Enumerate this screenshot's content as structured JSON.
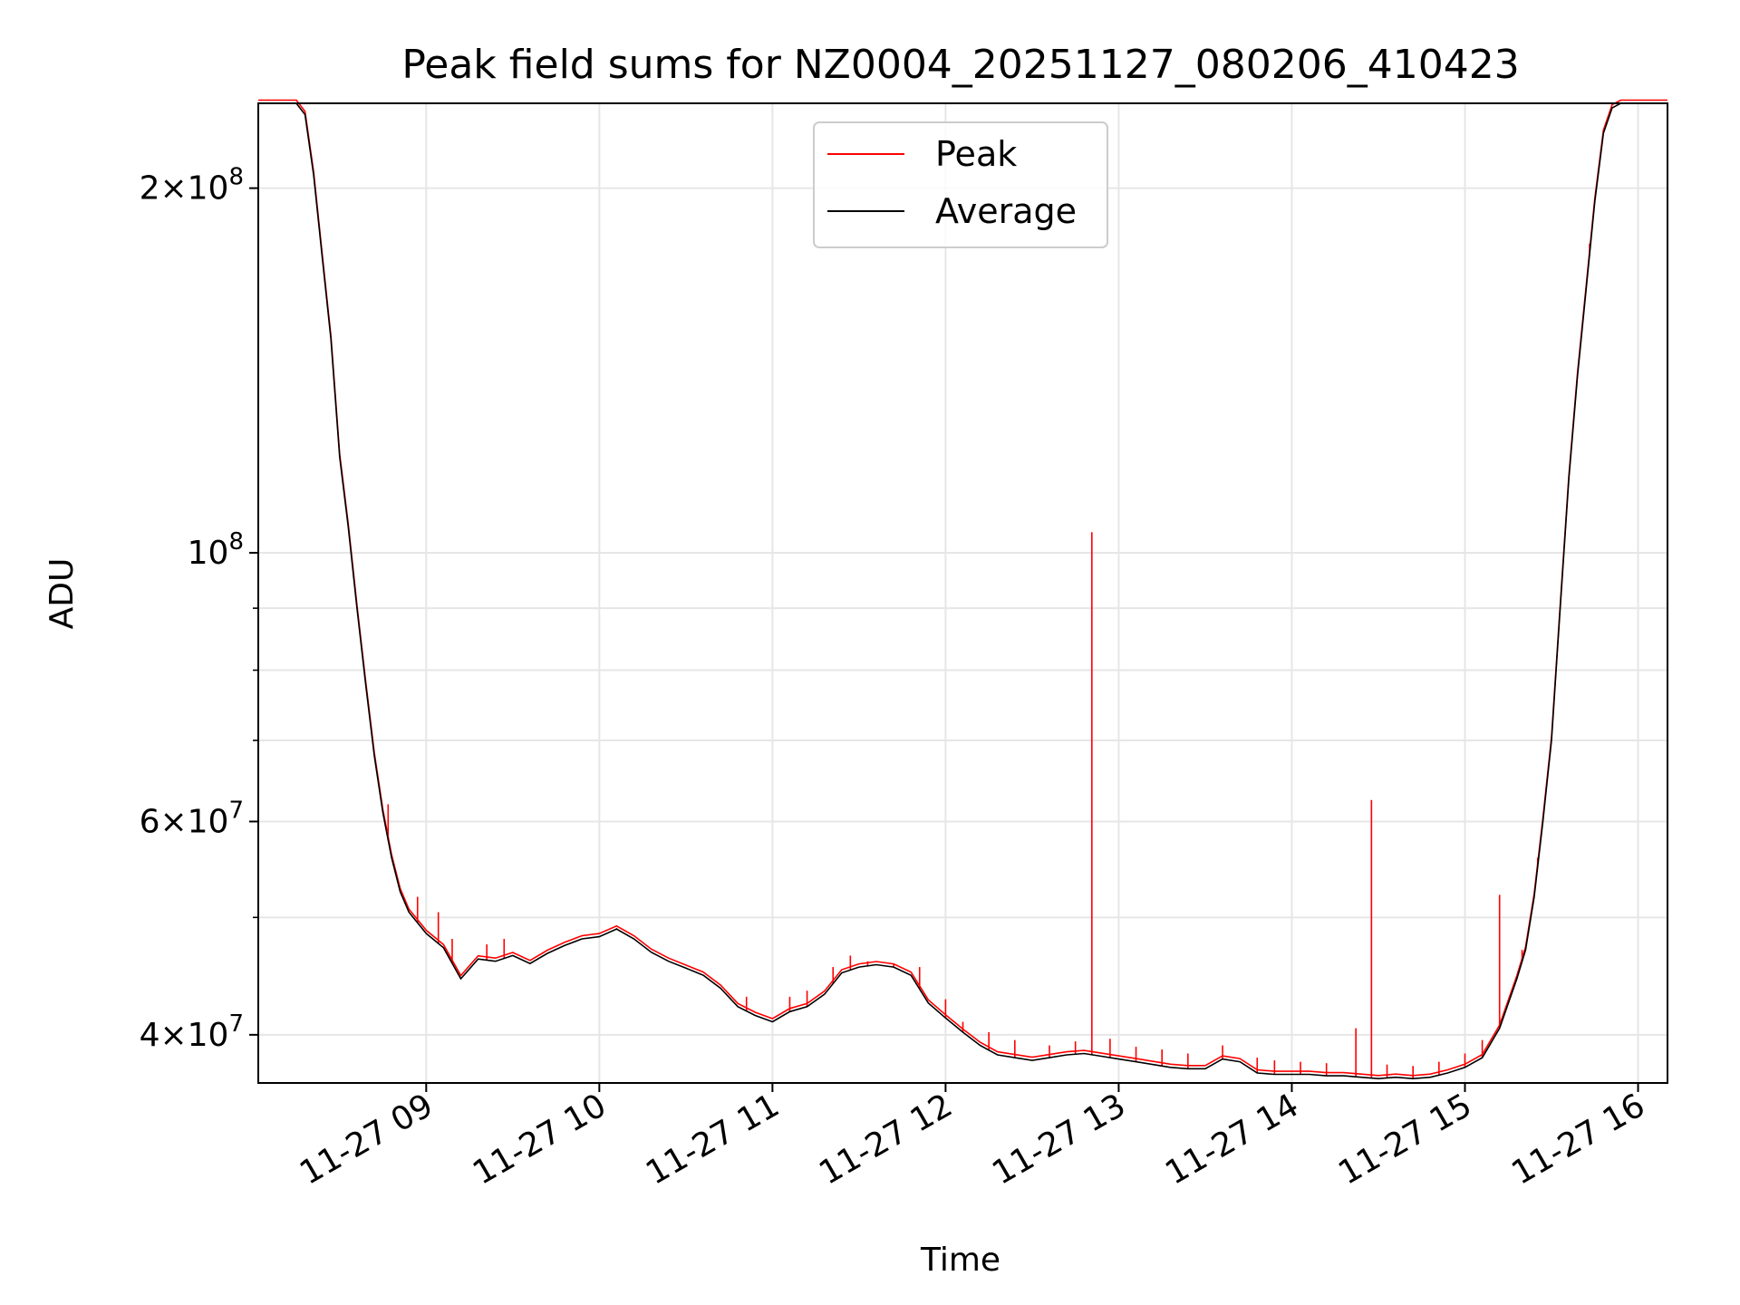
{
  "chart_data": {
    "type": "line",
    "title": "Peak field sums for NZ0004_20251127_080206_410423",
    "xlabel": "Time",
    "ylabel": "ADU",
    "y_scale": "log",
    "ylim": [
      36500000,
      235000000
    ],
    "x_hours_range": [
      8.03,
      16.17
    ],
    "grid": true,
    "legend_position": "upper center",
    "x_ticks": [
      {
        "value": 9,
        "label": "11-27 09"
      },
      {
        "value": 10,
        "label": "11-27 10"
      },
      {
        "value": 11,
        "label": "11-27 11"
      },
      {
        "value": 12,
        "label": "11-27 12"
      },
      {
        "value": 13,
        "label": "11-27 13"
      },
      {
        "value": 14,
        "label": "11-27 14"
      },
      {
        "value": 15,
        "label": "11-27 15"
      },
      {
        "value": 16,
        "label": "11-27 16"
      }
    ],
    "y_major_ticks": [
      {
        "value": 40000000,
        "mant": "4",
        "exp": "7"
      },
      {
        "value": 60000000,
        "mant": "6",
        "exp": "7"
      },
      {
        "value": 100000000,
        "mant": "",
        "exp": "8"
      },
      {
        "value": 200000000,
        "mant": "2",
        "exp": "8"
      }
    ],
    "y_minor_ticks": [
      50000000,
      70000000,
      80000000,
      90000000
    ],
    "average_series": {
      "name": "Average",
      "color": "#000000",
      "points": [
        [
          8.03,
          235000000
        ],
        [
          8.25,
          235000000
        ],
        [
          8.3,
          230000000
        ],
        [
          8.35,
          205000000
        ],
        [
          8.4,
          175000000
        ],
        [
          8.45,
          150000000
        ],
        [
          8.5,
          120000000
        ],
        [
          8.55,
          105000000
        ],
        [
          8.6,
          90000000
        ],
        [
          8.65,
          78000000
        ],
        [
          8.7,
          68000000
        ],
        [
          8.75,
          61000000
        ],
        [
          8.8,
          56000000
        ],
        [
          8.85,
          52500000
        ],
        [
          8.9,
          50500000
        ],
        [
          9.0,
          48500000
        ],
        [
          9.1,
          47200000
        ],
        [
          9.2,
          44500000
        ],
        [
          9.3,
          46200000
        ],
        [
          9.4,
          46000000
        ],
        [
          9.5,
          46500000
        ],
        [
          9.6,
          45800000
        ],
        [
          9.7,
          46700000
        ],
        [
          9.8,
          47400000
        ],
        [
          9.9,
          48000000
        ],
        [
          10.0,
          48200000
        ],
        [
          10.1,
          48900000
        ],
        [
          10.2,
          48000000
        ],
        [
          10.3,
          46800000
        ],
        [
          10.4,
          46000000
        ],
        [
          10.5,
          45400000
        ],
        [
          10.6,
          44800000
        ],
        [
          10.7,
          43700000
        ],
        [
          10.8,
          42200000
        ],
        [
          10.9,
          41500000
        ],
        [
          11.0,
          41000000
        ],
        [
          11.1,
          41800000
        ],
        [
          11.2,
          42200000
        ],
        [
          11.3,
          43200000
        ],
        [
          11.4,
          45000000
        ],
        [
          11.5,
          45500000
        ],
        [
          11.6,
          45700000
        ],
        [
          11.7,
          45500000
        ],
        [
          11.8,
          44800000
        ],
        [
          11.9,
          42500000
        ],
        [
          12.0,
          41300000
        ],
        [
          12.1,
          40200000
        ],
        [
          12.2,
          39200000
        ],
        [
          12.3,
          38500000
        ],
        [
          12.4,
          38300000
        ],
        [
          12.5,
          38100000
        ],
        [
          12.6,
          38300000
        ],
        [
          12.7,
          38500000
        ],
        [
          12.8,
          38600000
        ],
        [
          12.9,
          38400000
        ],
        [
          13.0,
          38200000
        ],
        [
          13.1,
          38000000
        ],
        [
          13.2,
          37800000
        ],
        [
          13.3,
          37600000
        ],
        [
          13.4,
          37500000
        ],
        [
          13.5,
          37500000
        ],
        [
          13.6,
          38200000
        ],
        [
          13.7,
          38000000
        ],
        [
          13.8,
          37200000
        ],
        [
          13.9,
          37100000
        ],
        [
          14.0,
          37100000
        ],
        [
          14.1,
          37100000
        ],
        [
          14.2,
          37000000
        ],
        [
          14.3,
          37000000
        ],
        [
          14.4,
          36900000
        ],
        [
          14.5,
          36800000
        ],
        [
          14.6,
          36900000
        ],
        [
          14.7,
          36800000
        ],
        [
          14.8,
          36900000
        ],
        [
          14.9,
          37200000
        ],
        [
          15.0,
          37600000
        ],
        [
          15.1,
          38300000
        ],
        [
          15.2,
          40500000
        ],
        [
          15.3,
          44500000
        ],
        [
          15.35,
          47000000
        ],
        [
          15.4,
          52000000
        ],
        [
          15.45,
          60000000
        ],
        [
          15.5,
          70000000
        ],
        [
          15.55,
          90000000
        ],
        [
          15.6,
          115000000
        ],
        [
          15.65,
          140000000
        ],
        [
          15.7,
          165000000
        ],
        [
          15.75,
          195000000
        ],
        [
          15.8,
          222000000
        ],
        [
          15.85,
          233000000
        ],
        [
          15.9,
          235000000
        ],
        [
          16.17,
          235000000
        ]
      ]
    },
    "peak_series": {
      "name": "Peak",
      "color": "#ff0000",
      "spikes": [
        [
          8.78,
          62000000
        ],
        [
          8.95,
          52000000
        ],
        [
          9.07,
          50500000
        ],
        [
          9.15,
          48000000
        ],
        [
          9.35,
          47500000
        ],
        [
          9.45,
          48000000
        ],
        [
          10.1,
          49000000
        ],
        [
          10.85,
          43000000
        ],
        [
          11.1,
          43000000
        ],
        [
          11.2,
          43500000
        ],
        [
          11.35,
          45500000
        ],
        [
          11.45,
          46500000
        ],
        [
          11.55,
          46000000
        ],
        [
          11.7,
          45800000
        ],
        [
          11.85,
          45500000
        ],
        [
          12.0,
          42800000
        ],
        [
          12.1,
          41000000
        ],
        [
          12.25,
          40200000
        ],
        [
          12.4,
          39600000
        ],
        [
          12.6,
          39200000
        ],
        [
          12.75,
          39500000
        ],
        [
          12.845,
          104000000
        ],
        [
          12.95,
          39700000
        ],
        [
          13.1,
          39100000
        ],
        [
          13.25,
          38900000
        ],
        [
          13.4,
          38600000
        ],
        [
          13.6,
          39200000
        ],
        [
          13.8,
          38300000
        ],
        [
          13.9,
          38100000
        ],
        [
          14.05,
          38000000
        ],
        [
          14.2,
          37900000
        ],
        [
          14.37,
          40500000
        ],
        [
          14.46,
          62500000
        ],
        [
          14.55,
          37800000
        ],
        [
          14.7,
          37700000
        ],
        [
          14.85,
          38000000
        ],
        [
          15.0,
          38600000
        ],
        [
          15.1,
          39600000
        ],
        [
          15.2,
          52200000
        ],
        [
          15.33,
          47000000
        ],
        [
          15.42,
          56000000
        ],
        [
          15.72,
          180000000
        ]
      ]
    },
    "legend": [
      {
        "label": "Peak",
        "color": "#ff0000"
      },
      {
        "label": "Average",
        "color": "#000000"
      }
    ]
  }
}
